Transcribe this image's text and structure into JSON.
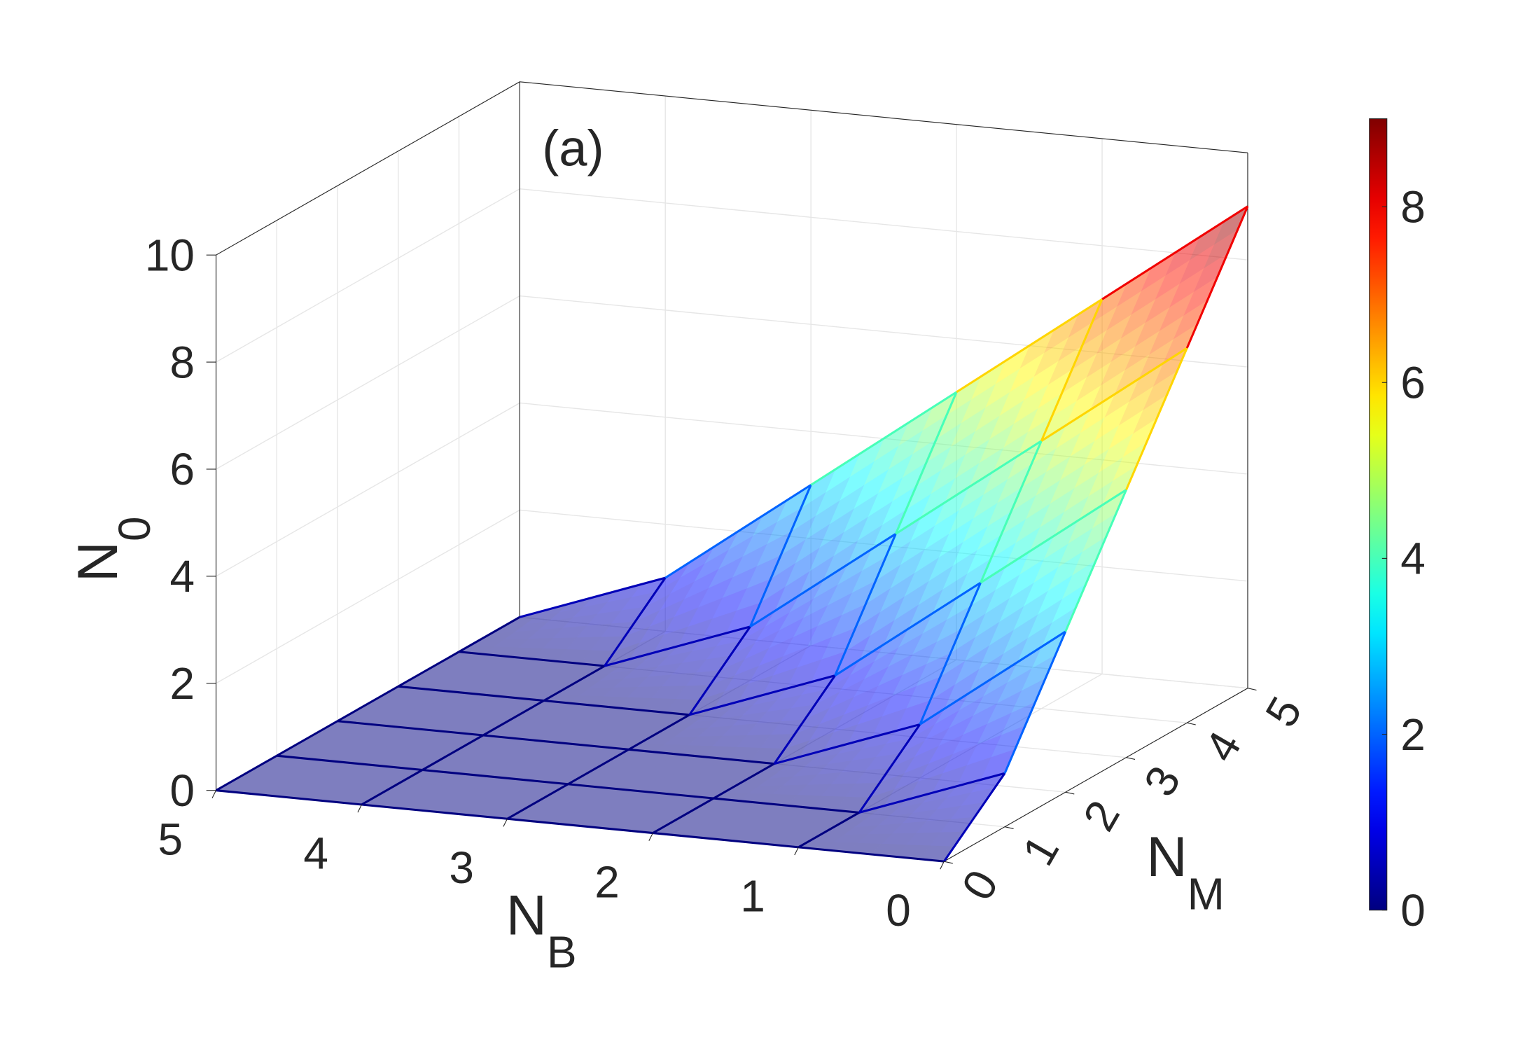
{
  "chart_data": {
    "type": "surface",
    "annotation": "(a)",
    "x": [
      0,
      1,
      2,
      3,
      4,
      5
    ],
    "y": [
      0,
      1,
      2,
      3,
      4,
      5
    ],
    "z": [
      [
        0,
        0,
        0,
        0,
        0,
        0
      ],
      [
        1,
        0,
        0,
        0,
        0,
        0
      ],
      [
        3,
        1,
        0,
        0,
        0,
        0
      ],
      [
        5,
        3,
        1,
        0,
        0,
        0
      ],
      [
        7,
        5,
        3,
        1,
        0,
        0
      ],
      [
        9,
        7,
        5,
        3,
        1,
        0
      ]
    ],
    "xlabel": {
      "base": "N",
      "sub": "B"
    },
    "ylabel": {
      "base": "N",
      "sub": "M"
    },
    "zlabel": {
      "base": "N",
      "sub": "0"
    },
    "xlim": [
      0,
      5
    ],
    "ylim": [
      0,
      5
    ],
    "zlim": [
      0,
      10
    ],
    "xticks": [
      0,
      1,
      2,
      3,
      4,
      5
    ],
    "yticks": [
      0,
      1,
      2,
      3,
      4,
      5
    ],
    "zticks": [
      0,
      2,
      4,
      6,
      8,
      10
    ],
    "colormap": "jet",
    "clim": [
      0,
      9
    ],
    "cticks": [
      0,
      2,
      4,
      6,
      8
    ],
    "alpha": 0.5,
    "grid": true
  }
}
